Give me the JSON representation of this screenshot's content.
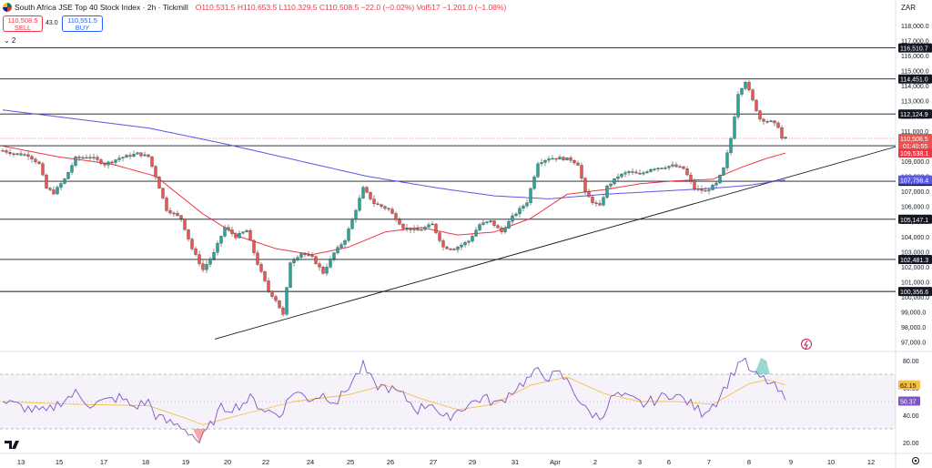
{
  "header": {
    "title": "South Africa JSE Top 40 Stock Index · 2h · Tickmill",
    "open": "O110,531.5",
    "high": "H110,653.5",
    "low": "L110,329.5",
    "close": "C110,508.5",
    "change": "−22.0 (−0.02%)",
    "volume": "Vol517",
    "vol_change": "−1,201.0 (−1.08%)",
    "currency": "ZAR"
  },
  "trade": {
    "sell_price": "110,508.5",
    "sell_label": "SELL",
    "spread": "43.0",
    "buy_price": "110,551.5",
    "buy_label": "BUY"
  },
  "indicator_toggle": "⌄ 2",
  "colors": {
    "up": "#26a69a",
    "down": "#ef5350",
    "sma_fast": "#f23645",
    "sma_slow": "#5a56e6",
    "rsi": "#7e57c2",
    "rsi_ma": "#f5c04a",
    "hline": "#131722"
  },
  "chart_data": {
    "type": "candlestick",
    "y_range": [
      96500,
      118600
    ],
    "y_ticks": [
      "118,000.0",
      "117,000.0",
      "116,000.0",
      "115,000.0",
      "114,000.0",
      "113,000.0",
      "112,000.0",
      "111,000.0",
      "110,000.0",
      "109,000.0",
      "108,000.0",
      "107,000.0",
      "106,000.0",
      "105,000.0",
      "104,000.0",
      "103,000.0",
      "102,000.0",
      "101,000.0",
      "100,000.0",
      "99,000.0",
      "98,000.0",
      "97,000.0"
    ],
    "x_labels": [
      "13",
      "15",
      "17",
      "18",
      "19",
      "20",
      "22",
      "24",
      "25",
      "26",
      "27",
      "29",
      "31",
      "Apr",
      "2",
      "3",
      "6",
      "7",
      "8",
      "9",
      "10",
      "12"
    ],
    "horizontal_levels": [
      {
        "value": 116510.7,
        "label": "116,510.7"
      },
      {
        "value": 114451.0,
        "label": "114,451.0"
      },
      {
        "value": 112124.9,
        "label": "112,124.9"
      },
      {
        "value": 110019.6,
        "label": "110,019.6"
      },
      {
        "value": 107666.4,
        "label": "107,666.4"
      },
      {
        "value": 105147.1,
        "label": "105,147.1"
      },
      {
        "value": 102481.3,
        "label": "102,481.3"
      },
      {
        "value": 100356.6,
        "label": "100,356.6"
      }
    ],
    "price_tags": [
      {
        "label": "110,508.5",
        "sub": "01:40:55",
        "value": 110508.5,
        "color": "#ef5350"
      },
      {
        "label": "109,538.1",
        "value": 109538.1,
        "color": "#f23645"
      },
      {
        "label": "107,756.4",
        "value": 107756.4,
        "color": "#5a56e6"
      }
    ],
    "trendline": {
      "from_index": 0,
      "from_value": 97200,
      "to_index": 219,
      "to_value": 109950
    },
    "close_keypoints": [
      [
        0,
        109700
      ],
      [
        3,
        109500
      ],
      [
        7,
        109400
      ],
      [
        10,
        108800
      ],
      [
        12,
        107200
      ],
      [
        14,
        106900
      ],
      [
        17,
        107800
      ],
      [
        20,
        109200
      ],
      [
        24,
        109300
      ],
      [
        28,
        108800
      ],
      [
        32,
        109200
      ],
      [
        37,
        109500
      ],
      [
        40,
        109300
      ],
      [
        42,
        108000
      ],
      [
        45,
        105800
      ],
      [
        49,
        105200
      ],
      [
        52,
        103200
      ],
      [
        55,
        101800
      ],
      [
        58,
        102900
      ],
      [
        61,
        104600
      ],
      [
        64,
        104000
      ],
      [
        67,
        104400
      ],
      [
        70,
        102200
      ],
      [
        73,
        100400
      ],
      [
        75,
        99800
      ],
      [
        77,
        98800
      ],
      [
        79,
        102300
      ],
      [
        82,
        102900
      ],
      [
        85,
        102600
      ],
      [
        88,
        101600
      ],
      [
        91,
        102900
      ],
      [
        94,
        103800
      ],
      [
        97,
        105800
      ],
      [
        99,
        107200
      ],
      [
        102,
        106200
      ],
      [
        106,
        105800
      ],
      [
        110,
        104600
      ],
      [
        114,
        104400
      ],
      [
        118,
        104800
      ],
      [
        121,
        103300
      ],
      [
        124,
        103200
      ],
      [
        128,
        103700
      ],
      [
        131,
        104800
      ],
      [
        134,
        105000
      ],
      [
        137,
        104300
      ],
      [
        140,
        105300
      ],
      [
        144,
        106300
      ],
      [
        147,
        108900
      ],
      [
        150,
        109200
      ],
      [
        153,
        109200
      ],
      [
        156,
        109100
      ],
      [
        158,
        108800
      ],
      [
        160,
        106900
      ],
      [
        162,
        106300
      ],
      [
        164,
        106000
      ],
      [
        166,
        107300
      ],
      [
        169,
        108000
      ],
      [
        172,
        108300
      ],
      [
        175,
        108100
      ],
      [
        178,
        108500
      ],
      [
        181,
        108600
      ],
      [
        184,
        108700
      ],
      [
        187,
        108500
      ],
      [
        190,
        107200
      ],
      [
        193,
        107000
      ],
      [
        196,
        107500
      ],
      [
        198,
        108500
      ],
      [
        200,
        110500
      ],
      [
        202,
        113500
      ],
      [
        204,
        114300
      ],
      [
        206,
        113000
      ],
      [
        208,
        111800
      ],
      [
        211,
        111600
      ],
      [
        213,
        111300
      ],
      [
        214,
        110500
      ],
      [
        215,
        110508.5
      ]
    ],
    "sma_fast_keypoints": [
      [
        0,
        110000
      ],
      [
        15,
        109300
      ],
      [
        30,
        108800
      ],
      [
        42,
        108000
      ],
      [
        55,
        105500
      ],
      [
        65,
        104000
      ],
      [
        75,
        103200
      ],
      [
        85,
        102800
      ],
      [
        95,
        103300
      ],
      [
        105,
        104300
      ],
      [
        115,
        104600
      ],
      [
        125,
        104100
      ],
      [
        135,
        104300
      ],
      [
        145,
        105200
      ],
      [
        155,
        106800
      ],
      [
        165,
        107100
      ],
      [
        175,
        107500
      ],
      [
        185,
        107700
      ],
      [
        195,
        107800
      ],
      [
        203,
        108600
      ],
      [
        210,
        109200
      ],
      [
        215,
        109538.1
      ]
    ],
    "sma_slow_keypoints": [
      [
        0,
        112400
      ],
      [
        20,
        111800
      ],
      [
        40,
        111200
      ],
      [
        60,
        110200
      ],
      [
        80,
        109100
      ],
      [
        100,
        108000
      ],
      [
        120,
        107200
      ],
      [
        135,
        106700
      ],
      [
        150,
        106500
      ],
      [
        165,
        106800
      ],
      [
        180,
        107000
      ],
      [
        195,
        107200
      ],
      [
        205,
        107400
      ],
      [
        215,
        107756.4
      ]
    ],
    "rsi": {
      "levels": [
        70,
        30
      ],
      "y_ticks": [
        "80.00",
        "60.00",
        "40.00",
        "20.00"
      ],
      "value_label": "50.37",
      "ma_label": "62.15",
      "keypoints": [
        [
          0,
          50
        ],
        [
          4,
          47
        ],
        [
          8,
          44
        ],
        [
          12,
          42
        ],
        [
          16,
          50
        ],
        [
          20,
          56
        ],
        [
          24,
          48
        ],
        [
          28,
          50
        ],
        [
          32,
          53
        ],
        [
          36,
          46
        ],
        [
          40,
          50
        ],
        [
          42,
          40
        ],
        [
          45,
          35
        ],
        [
          49,
          32
        ],
        [
          52,
          26
        ],
        [
          54,
          20
        ],
        [
          56,
          28
        ],
        [
          60,
          45
        ],
        [
          64,
          46
        ],
        [
          68,
          52
        ],
        [
          72,
          44
        ],
        [
          76,
          40
        ],
        [
          80,
          58
        ],
        [
          84,
          52
        ],
        [
          88,
          55
        ],
        [
          92,
          50
        ],
        [
          96,
          65
        ],
        [
          99,
          76
        ],
        [
          102,
          62
        ],
        [
          106,
          60
        ],
        [
          110,
          54
        ],
        [
          114,
          44
        ],
        [
          118,
          50
        ],
        [
          121,
          36
        ],
        [
          124,
          42
        ],
        [
          128,
          48
        ],
        [
          132,
          53
        ],
        [
          136,
          48
        ],
        [
          140,
          58
        ],
        [
          144,
          66
        ],
        [
          147,
          72
        ],
        [
          150,
          68
        ],
        [
          153,
          70
        ],
        [
          156,
          62
        ],
        [
          160,
          44
        ],
        [
          164,
          38
        ],
        [
          168,
          55
        ],
        [
          172,
          52
        ],
        [
          176,
          48
        ],
        [
          180,
          52
        ],
        [
          184,
          56
        ],
        [
          188,
          50
        ],
        [
          192,
          42
        ],
        [
          196,
          50
        ],
        [
          200,
          68
        ],
        [
          203,
          82
        ],
        [
          206,
          70
        ],
        [
          210,
          65
        ],
        [
          213,
          58
        ],
        [
          215,
          50.37
        ]
      ],
      "ma_keypoints": [
        [
          0,
          50
        ],
        [
          20,
          48
        ],
        [
          40,
          47
        ],
        [
          50,
          38
        ],
        [
          55,
          33
        ],
        [
          65,
          40
        ],
        [
          80,
          50
        ],
        [
          95,
          55
        ],
        [
          105,
          62
        ],
        [
          115,
          52
        ],
        [
          125,
          44
        ],
        [
          135,
          48
        ],
        [
          145,
          62
        ],
        [
          155,
          68
        ],
        [
          165,
          56
        ],
        [
          175,
          50
        ],
        [
          185,
          50
        ],
        [
          195,
          48
        ],
        [
          205,
          63
        ],
        [
          210,
          66
        ],
        [
          215,
          62.15
        ]
      ]
    }
  }
}
